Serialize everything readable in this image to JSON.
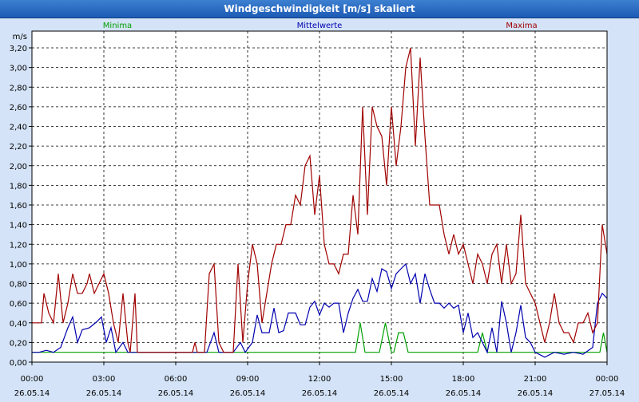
{
  "window": {
    "title": "Windgeschwindigkeit [m/s] skaliert"
  },
  "chart_data": {
    "type": "line",
    "title": "Windgeschwindigkeit [m/s] skaliert",
    "ylabel": "m/s",
    "ylim": [
      0,
      3.2
    ],
    "yticks": [
      "0,00",
      "0,20",
      "0,40",
      "0,60",
      "0,80",
      "1,00",
      "1,20",
      "1,40",
      "1,60",
      "1,80",
      "2,00",
      "2,20",
      "2,40",
      "2,60",
      "2,80",
      "3,00",
      "3,20"
    ],
    "xticks": [
      {
        "time": "00:00",
        "date": "26.05.14"
      },
      {
        "time": "03:00",
        "date": "26.05.14"
      },
      {
        "time": "06:00",
        "date": "26.05.14"
      },
      {
        "time": "09:00",
        "date": "26.05.14"
      },
      {
        "time": "12:00",
        "date": "26.05.14"
      },
      {
        "time": "15:00",
        "date": "26.05.14"
      },
      {
        "time": "18:00",
        "date": "26.05.14"
      },
      {
        "time": "21:00",
        "date": "26.05.14"
      },
      {
        "time": "00:00",
        "date": "27.05.14"
      }
    ],
    "grid": true,
    "legend": "top",
    "series": [
      {
        "name": "Minima",
        "color": "#00a000",
        "points": [
          [
            0,
            0.1
          ],
          [
            13.5,
            0.1
          ],
          [
            13.7,
            0.4
          ],
          [
            13.9,
            0.1
          ],
          [
            14.5,
            0.1
          ],
          [
            14.75,
            0.4
          ],
          [
            15.0,
            0.1
          ],
          [
            15.1,
            0.1
          ],
          [
            15.3,
            0.3
          ],
          [
            15.5,
            0.3
          ],
          [
            15.7,
            0.1
          ],
          [
            18.6,
            0.1
          ],
          [
            18.8,
            0.3
          ],
          [
            19.0,
            0.1
          ],
          [
            23.7,
            0.1
          ],
          [
            23.85,
            0.3
          ],
          [
            24,
            0.1
          ]
        ]
      },
      {
        "name": "Mittelwerte",
        "color": "#0000b0",
        "points": [
          [
            0,
            0.1
          ],
          [
            0.3,
            0.1
          ],
          [
            0.6,
            0.12
          ],
          [
            0.9,
            0.1
          ],
          [
            1.2,
            0.15
          ],
          [
            1.5,
            0.35
          ],
          [
            1.7,
            0.46
          ],
          [
            1.9,
            0.2
          ],
          [
            2.1,
            0.33
          ],
          [
            2.4,
            0.35
          ],
          [
            2.7,
            0.41
          ],
          [
            2.9,
            0.46
          ],
          [
            3.1,
            0.2
          ],
          [
            3.3,
            0.35
          ],
          [
            3.5,
            0.1
          ],
          [
            3.8,
            0.2
          ],
          [
            4.0,
            0.1
          ],
          [
            4.4,
            0.1
          ],
          [
            7.0,
            0.1
          ],
          [
            7.3,
            0.1
          ],
          [
            7.6,
            0.3
          ],
          [
            7.8,
            0.1
          ],
          [
            8.4,
            0.1
          ],
          [
            8.7,
            0.2
          ],
          [
            8.9,
            0.1
          ],
          [
            9.2,
            0.2
          ],
          [
            9.4,
            0.48
          ],
          [
            9.6,
            0.3
          ],
          [
            9.9,
            0.3
          ],
          [
            10.1,
            0.55
          ],
          [
            10.3,
            0.3
          ],
          [
            10.5,
            0.32
          ],
          [
            10.7,
            0.5
          ],
          [
            11.0,
            0.5
          ],
          [
            11.2,
            0.38
          ],
          [
            11.4,
            0.38
          ],
          [
            11.6,
            0.56
          ],
          [
            11.8,
            0.62
          ],
          [
            12.0,
            0.48
          ],
          [
            12.2,
            0.6
          ],
          [
            12.4,
            0.56
          ],
          [
            12.6,
            0.6
          ],
          [
            12.8,
            0.6
          ],
          [
            13.0,
            0.3
          ],
          [
            13.2,
            0.5
          ],
          [
            13.4,
            0.65
          ],
          [
            13.6,
            0.74
          ],
          [
            13.8,
            0.62
          ],
          [
            14.0,
            0.62
          ],
          [
            14.2,
            0.85
          ],
          [
            14.4,
            0.72
          ],
          [
            14.6,
            0.95
          ],
          [
            14.8,
            0.92
          ],
          [
            15.0,
            0.75
          ],
          [
            15.2,
            0.9
          ],
          [
            15.4,
            0.95
          ],
          [
            15.6,
            1.0
          ],
          [
            15.8,
            0.8
          ],
          [
            16.0,
            0.9
          ],
          [
            16.2,
            0.6
          ],
          [
            16.4,
            0.9
          ],
          [
            16.6,
            0.74
          ],
          [
            16.8,
            0.6
          ],
          [
            17.0,
            0.6
          ],
          [
            17.2,
            0.55
          ],
          [
            17.4,
            0.6
          ],
          [
            17.6,
            0.55
          ],
          [
            17.8,
            0.58
          ],
          [
            18.0,
            0.3
          ],
          [
            18.2,
            0.5
          ],
          [
            18.4,
            0.25
          ],
          [
            18.6,
            0.3
          ],
          [
            18.8,
            0.2
          ],
          [
            19.0,
            0.1
          ],
          [
            19.2,
            0.35
          ],
          [
            19.4,
            0.1
          ],
          [
            19.6,
            0.62
          ],
          [
            19.8,
            0.4
          ],
          [
            20.0,
            0.1
          ],
          [
            20.2,
            0.3
          ],
          [
            20.4,
            0.58
          ],
          [
            20.6,
            0.25
          ],
          [
            20.8,
            0.2
          ],
          [
            21.0,
            0.1
          ],
          [
            21.4,
            0.05
          ],
          [
            21.8,
            0.1
          ],
          [
            22.2,
            0.08
          ],
          [
            22.6,
            0.1
          ],
          [
            23.0,
            0.08
          ],
          [
            23.4,
            0.15
          ],
          [
            23.6,
            0.6
          ],
          [
            23.8,
            0.7
          ],
          [
            24.0,
            0.65
          ]
        ]
      },
      {
        "name": "Maxima",
        "color": "#a00000",
        "points": [
          [
            0,
            0.4
          ],
          [
            0.4,
            0.4
          ],
          [
            0.5,
            0.7
          ],
          [
            0.7,
            0.5
          ],
          [
            0.9,
            0.4
          ],
          [
            1.1,
            0.9
          ],
          [
            1.3,
            0.4
          ],
          [
            1.5,
            0.6
          ],
          [
            1.7,
            0.9
          ],
          [
            1.9,
            0.7
          ],
          [
            2.1,
            0.7
          ],
          [
            2.3,
            0.8
          ],
          [
            2.4,
            0.9
          ],
          [
            2.6,
            0.7
          ],
          [
            2.8,
            0.8
          ],
          [
            3.0,
            0.9
          ],
          [
            3.2,
            0.7
          ],
          [
            3.4,
            0.4
          ],
          [
            3.6,
            0.2
          ],
          [
            3.8,
            0.7
          ],
          [
            4.0,
            0.2
          ],
          [
            4.1,
            0.1
          ],
          [
            4.3,
            0.7
          ],
          [
            4.4,
            0.1
          ],
          [
            6.7,
            0.1
          ],
          [
            6.8,
            0.2
          ],
          [
            6.9,
            0.1
          ],
          [
            7.2,
            0.1
          ],
          [
            7.4,
            0.9
          ],
          [
            7.6,
            1.0
          ],
          [
            7.8,
            0.2
          ],
          [
            8.0,
            0.1
          ],
          [
            8.4,
            0.1
          ],
          [
            8.6,
            1.0
          ],
          [
            8.8,
            0.2
          ],
          [
            9.0,
            0.8
          ],
          [
            9.2,
            1.2
          ],
          [
            9.4,
            1.0
          ],
          [
            9.6,
            0.4
          ],
          [
            9.8,
            0.7
          ],
          [
            10.0,
            1.0
          ],
          [
            10.2,
            1.2
          ],
          [
            10.4,
            1.2
          ],
          [
            10.6,
            1.4
          ],
          [
            10.8,
            1.4
          ],
          [
            11.0,
            1.7
          ],
          [
            11.2,
            1.6
          ],
          [
            11.4,
            2.0
          ],
          [
            11.6,
            2.1
          ],
          [
            11.8,
            1.5
          ],
          [
            12.0,
            1.9
          ],
          [
            12.2,
            1.2
          ],
          [
            12.4,
            1.0
          ],
          [
            12.6,
            1.0
          ],
          [
            12.8,
            0.9
          ],
          [
            13.0,
            1.1
          ],
          [
            13.2,
            1.1
          ],
          [
            13.4,
            1.7
          ],
          [
            13.6,
            1.3
          ],
          [
            13.8,
            2.6
          ],
          [
            14.0,
            1.5
          ],
          [
            14.2,
            2.6
          ],
          [
            14.4,
            2.4
          ],
          [
            14.6,
            2.3
          ],
          [
            14.8,
            1.8
          ],
          [
            15.0,
            2.6
          ],
          [
            15.2,
            2.0
          ],
          [
            15.4,
            2.4
          ],
          [
            15.6,
            3.0
          ],
          [
            15.8,
            3.2
          ],
          [
            16.0,
            2.2
          ],
          [
            16.2,
            3.1
          ],
          [
            16.4,
            2.3
          ],
          [
            16.6,
            1.6
          ],
          [
            16.8,
            1.6
          ],
          [
            17.0,
            1.6
          ],
          [
            17.2,
            1.3
          ],
          [
            17.4,
            1.1
          ],
          [
            17.6,
            1.3
          ],
          [
            17.8,
            1.1
          ],
          [
            18.0,
            1.2
          ],
          [
            18.2,
            1.0
          ],
          [
            18.4,
            0.8
          ],
          [
            18.6,
            1.1
          ],
          [
            18.8,
            1.0
          ],
          [
            19.0,
            0.8
          ],
          [
            19.2,
            1.1
          ],
          [
            19.4,
            1.2
          ],
          [
            19.6,
            0.8
          ],
          [
            19.8,
            1.2
          ],
          [
            20.0,
            0.8
          ],
          [
            20.2,
            0.9
          ],
          [
            20.4,
            1.5
          ],
          [
            20.6,
            0.8
          ],
          [
            20.8,
            0.7
          ],
          [
            21.0,
            0.6
          ],
          [
            21.2,
            0.4
          ],
          [
            21.4,
            0.2
          ],
          [
            21.6,
            0.4
          ],
          [
            21.8,
            0.7
          ],
          [
            22.0,
            0.4
          ],
          [
            22.2,
            0.3
          ],
          [
            22.4,
            0.3
          ],
          [
            22.6,
            0.2
          ],
          [
            22.8,
            0.4
          ],
          [
            23.0,
            0.4
          ],
          [
            23.2,
            0.5
          ],
          [
            23.4,
            0.3
          ],
          [
            23.6,
            0.4
          ],
          [
            23.8,
            1.4
          ],
          [
            24.0,
            1.1
          ],
          [
            24.2,
            1.3
          ]
        ]
      }
    ]
  }
}
